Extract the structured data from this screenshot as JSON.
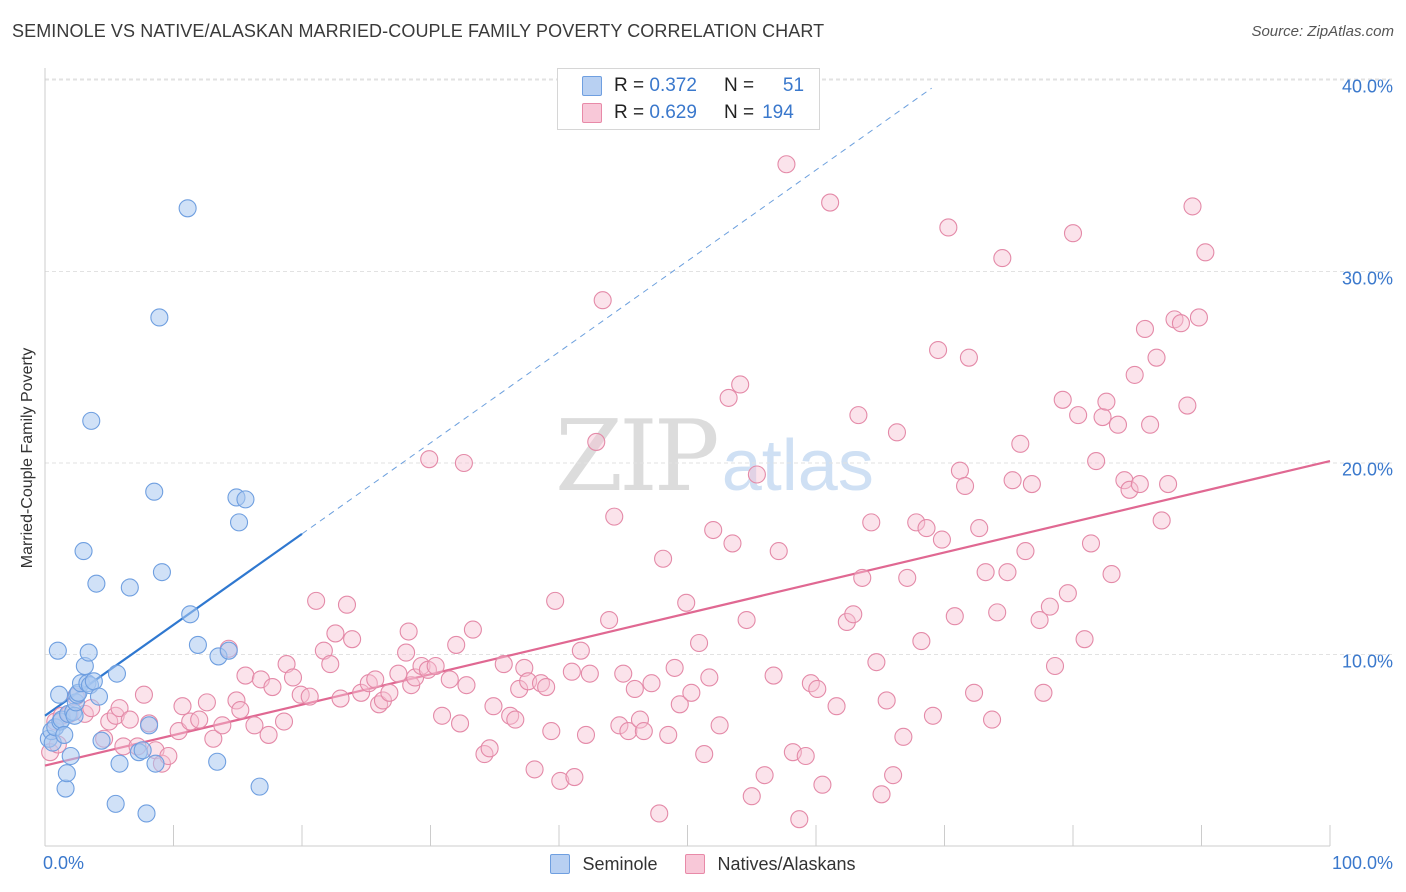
{
  "title": "SEMINOLE VS NATIVE/ALASKAN MARRIED-COUPLE FAMILY POVERTY CORRELATION CHART",
  "source": "Source: ZipAtlas.com",
  "watermark": {
    "zip": "ZIP",
    "atlas": "atlas"
  },
  "legend": {
    "rows": [
      {
        "r_label": "R =",
        "r_value": "0.372",
        "n_label": "N =",
        "n_value": "51",
        "fill": "#b8d0f2",
        "stroke": "#6f9fe0"
      },
      {
        "r_label": "R =",
        "r_value": "0.629",
        "n_label": "N =",
        "n_value": "194",
        "fill": "#f8c8d8",
        "stroke": "#e88aa8"
      }
    ]
  },
  "bottom_legend": [
    {
      "label": "Seminole",
      "fill": "#b8d0f2",
      "stroke": "#6f9fe0"
    },
    {
      "label": "Natives/Alaskans",
      "fill": "#f8c8d8",
      "stroke": "#e88aa8"
    }
  ],
  "colors": {
    "seminole_fill": "#aac8f0",
    "seminole_stroke": "#6f9fe0",
    "seminole_line": "#2f78d0",
    "natives_fill": "#f6c0d2",
    "natives_stroke": "#e48aa8",
    "natives_line": "#e06892",
    "grid": "#e2e2e2",
    "axis_text": "#3a78cc"
  },
  "chart_data": {
    "type": "scatter",
    "title": "SEMINOLE VS NATIVE/ALASKAN MARRIED-COUPLE FAMILY POVERTY CORRELATION CHART",
    "xlabel": "",
    "ylabel": "Married-Couple Family Poverty",
    "xlim": [
      0,
      100
    ],
    "ylim": [
      0,
      42
    ],
    "x_tick_labels": [
      {
        "value": 0,
        "label": "0.0%"
      },
      {
        "value": 100,
        "label": "100.0%"
      }
    ],
    "x_minor_ticks": [
      10,
      20,
      30,
      40,
      50,
      60,
      70,
      80,
      90,
      100
    ],
    "y_ticks": [
      {
        "value": 10,
        "label": "10.0%"
      },
      {
        "value": 20,
        "label": "20.0%"
      },
      {
        "value": 30,
        "label": "30.0%"
      },
      {
        "value": 40,
        "label": "40.0%"
      }
    ],
    "series": [
      {
        "name": "Seminole",
        "R": 0.372,
        "N": 51,
        "trend": {
          "x0": 0,
          "y0": 6.8,
          "x1": 20,
          "y1": 16.3,
          "dash_to_x": 69
        },
        "points": [
          [
            0.3,
            5.6
          ],
          [
            0.5,
            6.0
          ],
          [
            0.6,
            5.4
          ],
          [
            0.8,
            6.2
          ],
          [
            1.0,
            10.2
          ],
          [
            1.1,
            7.9
          ],
          [
            1.2,
            6.5
          ],
          [
            1.3,
            6.6
          ],
          [
            1.5,
            5.8
          ],
          [
            1.6,
            3.0
          ],
          [
            1.7,
            3.8
          ],
          [
            1.8,
            6.9
          ],
          [
            2.0,
            4.7
          ],
          [
            2.2,
            7.0
          ],
          [
            2.3,
            6.8
          ],
          [
            2.4,
            7.5
          ],
          [
            2.5,
            7.9
          ],
          [
            2.6,
            8.0
          ],
          [
            2.8,
            8.5
          ],
          [
            3.0,
            15.4
          ],
          [
            3.1,
            9.4
          ],
          [
            3.3,
            8.5
          ],
          [
            3.4,
            10.1
          ],
          [
            3.5,
            8.4
          ],
          [
            3.6,
            22.2
          ],
          [
            3.8,
            8.6
          ],
          [
            4.0,
            13.7
          ],
          [
            4.2,
            7.8
          ],
          [
            4.4,
            5.5
          ],
          [
            5.5,
            2.2
          ],
          [
            5.6,
            9.0
          ],
          [
            5.8,
            4.3
          ],
          [
            6.6,
            13.5
          ],
          [
            7.3,
            4.9
          ],
          [
            7.6,
            5.0
          ],
          [
            7.9,
            1.7
          ],
          [
            8.1,
            6.3
          ],
          [
            8.5,
            18.5
          ],
          [
            8.6,
            4.3
          ],
          [
            8.9,
            27.6
          ],
          [
            9.1,
            14.3
          ],
          [
            11.1,
            33.3
          ],
          [
            11.3,
            12.1
          ],
          [
            11.9,
            10.5
          ],
          [
            13.4,
            4.4
          ],
          [
            13.5,
            9.9
          ],
          [
            14.3,
            10.2
          ],
          [
            14.9,
            18.2
          ],
          [
            15.1,
            16.9
          ],
          [
            15.6,
            18.1
          ],
          [
            16.7,
            3.1
          ]
        ]
      },
      {
        "name": "Natives/Alaskans",
        "R": 0.629,
        "N": 194,
        "trend": {
          "x0": 0,
          "y0": 4.2,
          "x1": 100,
          "y1": 20.1
        },
        "points": [
          [
            0.4,
            4.9
          ],
          [
            0.8,
            6.5
          ],
          [
            1.0,
            5.3
          ],
          [
            1.3,
            6.8
          ],
          [
            1.9,
            6.9
          ],
          [
            2.4,
            7.8
          ],
          [
            3.1,
            6.9
          ],
          [
            3.6,
            7.2
          ],
          [
            4.6,
            5.6
          ],
          [
            5.0,
            6.5
          ],
          [
            5.5,
            6.8
          ],
          [
            5.8,
            7.2
          ],
          [
            6.1,
            5.2
          ],
          [
            6.6,
            6.6
          ],
          [
            7.2,
            5.2
          ],
          [
            7.7,
            7.9
          ],
          [
            8.1,
            6.4
          ],
          [
            8.6,
            5.0
          ],
          [
            9.1,
            4.3
          ],
          [
            9.6,
            4.7
          ],
          [
            10.4,
            6.0
          ],
          [
            10.7,
            7.3
          ],
          [
            11.3,
            6.5
          ],
          [
            12.0,
            6.6
          ],
          [
            12.6,
            7.5
          ],
          [
            13.1,
            5.6
          ],
          [
            13.8,
            6.3
          ],
          [
            14.3,
            10.3
          ],
          [
            14.9,
            7.6
          ],
          [
            15.2,
            7.1
          ],
          [
            15.6,
            8.9
          ],
          [
            16.3,
            6.3
          ],
          [
            16.8,
            8.7
          ],
          [
            17.4,
            5.8
          ],
          [
            17.7,
            8.3
          ],
          [
            18.6,
            6.5
          ],
          [
            18.8,
            9.5
          ],
          [
            19.3,
            8.8
          ],
          [
            19.9,
            7.9
          ],
          [
            20.6,
            7.8
          ],
          [
            21.1,
            12.8
          ],
          [
            21.7,
            10.2
          ],
          [
            22.2,
            9.5
          ],
          [
            22.6,
            11.1
          ],
          [
            23.0,
            7.7
          ],
          [
            23.5,
            12.6
          ],
          [
            23.9,
            10.8
          ],
          [
            24.6,
            8.0
          ],
          [
            25.2,
            8.5
          ],
          [
            25.7,
            8.7
          ],
          [
            26.0,
            7.4
          ],
          [
            26.3,
            7.6
          ],
          [
            26.8,
            8.0
          ],
          [
            27.5,
            9.0
          ],
          [
            28.1,
            10.1
          ],
          [
            28.5,
            8.4
          ],
          [
            28.8,
            8.8
          ],
          [
            29.3,
            9.4
          ],
          [
            29.8,
            9.2
          ],
          [
            29.9,
            20.2
          ],
          [
            30.4,
            9.4
          ],
          [
            30.9,
            6.8
          ],
          [
            31.5,
            8.7
          ],
          [
            32.0,
            10.5
          ],
          [
            32.3,
            6.4
          ],
          [
            32.6,
            20.0
          ],
          [
            32.8,
            8.4
          ],
          [
            33.3,
            11.3
          ],
          [
            34.2,
            4.8
          ],
          [
            34.6,
            5.1
          ],
          [
            34.9,
            7.3
          ],
          [
            35.7,
            9.5
          ],
          [
            36.2,
            6.8
          ],
          [
            36.6,
            6.6
          ],
          [
            36.9,
            8.2
          ],
          [
            37.3,
            9.3
          ],
          [
            37.6,
            8.6
          ],
          [
            38.1,
            4.0
          ],
          [
            38.6,
            8.5
          ],
          [
            39.0,
            8.3
          ],
          [
            39.4,
            6.0
          ],
          [
            39.7,
            12.8
          ],
          [
            40.1,
            3.4
          ],
          [
            41.0,
            9.1
          ],
          [
            41.2,
            3.6
          ],
          [
            41.7,
            10.2
          ],
          [
            42.1,
            5.8
          ],
          [
            42.4,
            9.0
          ],
          [
            42.9,
            21.1
          ],
          [
            43.4,
            28.5
          ],
          [
            43.9,
            11.8
          ],
          [
            44.3,
            17.2
          ],
          [
            44.7,
            6.3
          ],
          [
            45.0,
            9.0
          ],
          [
            45.4,
            6.0
          ],
          [
            45.9,
            8.2
          ],
          [
            46.3,
            6.6
          ],
          [
            46.6,
            6.0
          ],
          [
            47.2,
            8.5
          ],
          [
            47.8,
            1.7
          ],
          [
            48.1,
            15.0
          ],
          [
            48.5,
            5.8
          ],
          [
            49.0,
            9.3
          ],
          [
            49.4,
            7.4
          ],
          [
            49.9,
            12.7
          ],
          [
            50.3,
            8.0
          ],
          [
            50.9,
            10.6
          ],
          [
            51.3,
            4.8
          ],
          [
            51.7,
            8.8
          ],
          [
            52.0,
            16.5
          ],
          [
            52.5,
            6.3
          ],
          [
            53.2,
            23.4
          ],
          [
            53.5,
            15.8
          ],
          [
            54.1,
            24.1
          ],
          [
            54.6,
            11.8
          ],
          [
            55.0,
            2.6
          ],
          [
            55.4,
            19.4
          ],
          [
            56.0,
            3.7
          ],
          [
            56.7,
            8.9
          ],
          [
            57.1,
            15.4
          ],
          [
            57.7,
            35.6
          ],
          [
            58.2,
            4.9
          ],
          [
            58.7,
            1.4
          ],
          [
            59.2,
            4.7
          ],
          [
            59.6,
            8.5
          ],
          [
            60.1,
            8.2
          ],
          [
            60.5,
            3.2
          ],
          [
            61.1,
            33.6
          ],
          [
            61.6,
            7.3
          ],
          [
            62.4,
            11.7
          ],
          [
            62.9,
            12.1
          ],
          [
            63.3,
            22.5
          ],
          [
            63.6,
            14.0
          ],
          [
            64.3,
            16.9
          ],
          [
            64.7,
            9.6
          ],
          [
            65.1,
            2.7
          ],
          [
            65.5,
            7.6
          ],
          [
            66.0,
            3.7
          ],
          [
            66.3,
            21.6
          ],
          [
            66.8,
            5.7
          ],
          [
            67.1,
            14.0
          ],
          [
            67.8,
            16.9
          ],
          [
            68.2,
            10.7
          ],
          [
            68.6,
            16.6
          ],
          [
            69.1,
            6.8
          ],
          [
            69.5,
            25.9
          ],
          [
            69.8,
            16.0
          ],
          [
            70.3,
            32.3
          ],
          [
            70.8,
            12.0
          ],
          [
            71.2,
            19.6
          ],
          [
            71.6,
            18.8
          ],
          [
            71.9,
            25.5
          ],
          [
            72.3,
            8.0
          ],
          [
            72.7,
            16.6
          ],
          [
            73.2,
            14.3
          ],
          [
            73.7,
            6.6
          ],
          [
            74.1,
            12.2
          ],
          [
            74.5,
            30.7
          ],
          [
            74.9,
            14.3
          ],
          [
            75.3,
            19.1
          ],
          [
            75.9,
            21.0
          ],
          [
            76.3,
            15.4
          ],
          [
            76.8,
            18.9
          ],
          [
            77.4,
            11.8
          ],
          [
            77.7,
            8.0
          ],
          [
            78.2,
            12.5
          ],
          [
            78.6,
            9.4
          ],
          [
            79.2,
            23.3
          ],
          [
            79.6,
            13.2
          ],
          [
            80.0,
            32.0
          ],
          [
            80.4,
            22.5
          ],
          [
            80.9,
            10.8
          ],
          [
            81.4,
            15.8
          ],
          [
            81.8,
            20.1
          ],
          [
            82.3,
            22.4
          ],
          [
            82.6,
            23.2
          ],
          [
            83.0,
            14.2
          ],
          [
            83.5,
            22.0
          ],
          [
            84.0,
            19.1
          ],
          [
            84.4,
            18.6
          ],
          [
            84.8,
            24.6
          ],
          [
            85.2,
            18.9
          ],
          [
            85.6,
            27.0
          ],
          [
            86.0,
            22.0
          ],
          [
            86.5,
            25.5
          ],
          [
            86.9,
            17.0
          ],
          [
            87.4,
            18.9
          ],
          [
            87.9,
            27.5
          ],
          [
            88.4,
            27.3
          ],
          [
            88.9,
            23.0
          ],
          [
            89.3,
            33.4
          ],
          [
            89.8,
            27.6
          ],
          [
            90.3,
            31.0
          ],
          [
            28.3,
            11.2
          ]
        ]
      }
    ]
  }
}
